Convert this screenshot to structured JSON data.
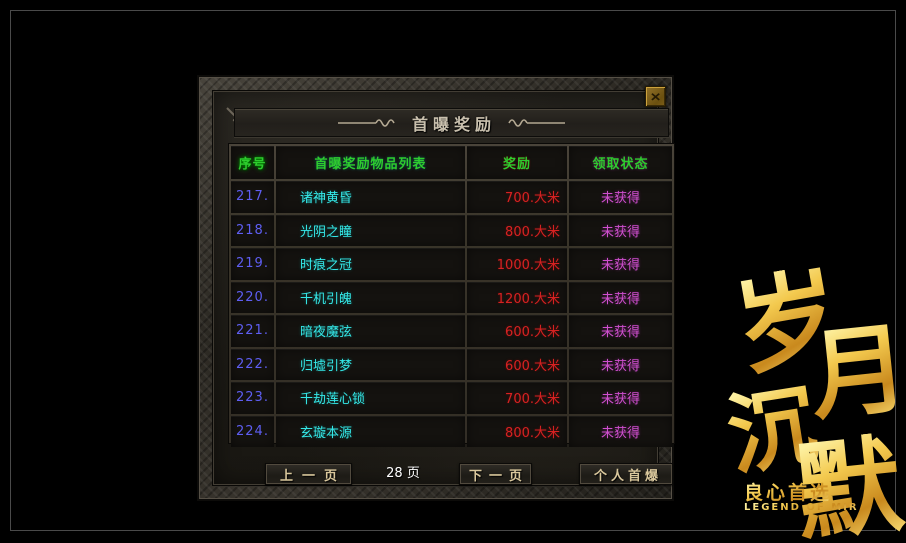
{
  "dialog": {
    "title": "首曝奖励",
    "close_icon": "✕"
  },
  "icons": {
    "close": "x-mark",
    "title_flourish": "dash-wave-ornament",
    "corner": "diagonal-arrow-ornament"
  },
  "table": {
    "headers": [
      "序号",
      "首曝奖励物品列表",
      "奖励",
      "领取状态"
    ],
    "rows": [
      {
        "num": "217.",
        "item": "诸神黄昏",
        "reward": "700.大米",
        "status": "未获得"
      },
      {
        "num": "218.",
        "item": "光阴之瞳",
        "reward": "800.大米",
        "status": "未获得"
      },
      {
        "num": "219.",
        "item": "时痕之冠",
        "reward": "1000.大米",
        "status": "未获得"
      },
      {
        "num": "220.",
        "item": "千机引魄",
        "reward": "1200.大米",
        "status": "未获得"
      },
      {
        "num": "221.",
        "item": "暗夜魔弦",
        "reward": "600.大米",
        "status": "未获得"
      },
      {
        "num": "222.",
        "item": "归墟引梦",
        "reward": "600.大米",
        "status": "未获得"
      },
      {
        "num": "223.",
        "item": "千劫莲心锁",
        "reward": "700.大米",
        "status": "未获得"
      },
      {
        "num": "224.",
        "item": "玄璇本源",
        "reward": "800.大米",
        "status": "未获得"
      }
    ]
  },
  "pagination": {
    "prev_label": "上一页",
    "page_indicator": "28 页",
    "next_label": "下一页",
    "personal_label": "个人首爆"
  },
  "branding": {
    "char_1": "岁",
    "char_2": "月",
    "char_3": "沉",
    "char_4": "默",
    "tagline": "良心首选",
    "subtitle": "LEGEND OF MIR"
  },
  "colors": {
    "header_green": "#2ecc2e",
    "row_num_blue": "#5e5ef2",
    "item_cyan": "#35e8e8",
    "reward_red": "#d62222",
    "status_magenta": "#cf4fcf",
    "button_text": "#d9c79c",
    "gold": "#eebd3d"
  }
}
